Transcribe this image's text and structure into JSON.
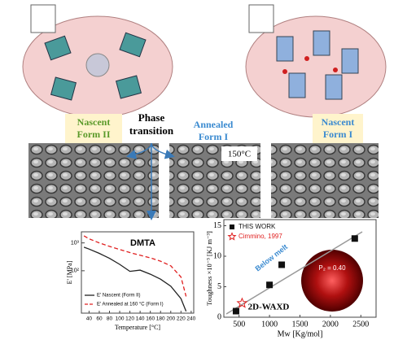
{
  "panels": {
    "left_label": [
      "Nascent",
      "Form II"
    ],
    "right_label": [
      "Nascent",
      "Form I"
    ],
    "center_label": [
      "Phase",
      "transition"
    ],
    "annealed_label": [
      "Annealed",
      "Form I"
    ],
    "sem_temperature": "150°C"
  },
  "chart_data": [
    {
      "type": "line",
      "title": "DMTA",
      "x_label": "Temperature [°C]",
      "y_label": "E' [MPa]",
      "log_y": true,
      "x": [
        30,
        40,
        60,
        80,
        100,
        120,
        140,
        160,
        180,
        200,
        220,
        230
      ],
      "series": [
        {
          "name": "E' Nascent (Form II)",
          "color": "#222222",
          "dash": false,
          "values": [
            700,
            600,
            420,
            280,
            170,
            95,
            105,
            75,
            50,
            28,
            10,
            3.5
          ]
        },
        {
          "name": "E' Annealed at 160 °C (Form I)",
          "color": "#e02020",
          "dash": true,
          "values": [
            1800,
            1400,
            1000,
            750,
            580,
            450,
            360,
            290,
            220,
            150,
            60,
            12
          ]
        }
      ],
      "xlim": [
        25,
        245
      ],
      "xticks": [
        40,
        60,
        80,
        100,
        120,
        140,
        160,
        180,
        200,
        220,
        240
      ],
      "ylim": [
        3,
        2500
      ],
      "yticks": [
        {
          "value": 100,
          "label": "10²"
        },
        {
          "value": 1000,
          "label": "10³"
        }
      ],
      "legend": "lower left"
    },
    {
      "type": "scatter",
      "x_label": "Mw [Kg/mol]",
      "y_label": "Toughness ×10⁻³ [KJ m⁻³]",
      "series": [
        {
          "name": "THIS WORK",
          "color": "#111111",
          "marker": "square",
          "x": [
            450,
            1000,
            1200,
            2400
          ],
          "values": [
            1,
            5.3,
            8.6,
            12.9
          ]
        },
        {
          "name": "Cimmino, 1997",
          "color": "#e02020",
          "marker": "star",
          "x": [
            550
          ],
          "values": [
            2.3
          ]
        }
      ],
      "annotations": [
        "Below melt",
        "2D-WAXD",
        "P₂ = 0.40"
      ],
      "xlim": [
        250,
        2750
      ],
      "xticks": [
        500,
        1000,
        1500,
        2000,
        2500
      ],
      "ylim": [
        0,
        16
      ],
      "yticks": [
        0,
        5,
        10,
        15
      ],
      "legend": "upper left"
    }
  ]
}
